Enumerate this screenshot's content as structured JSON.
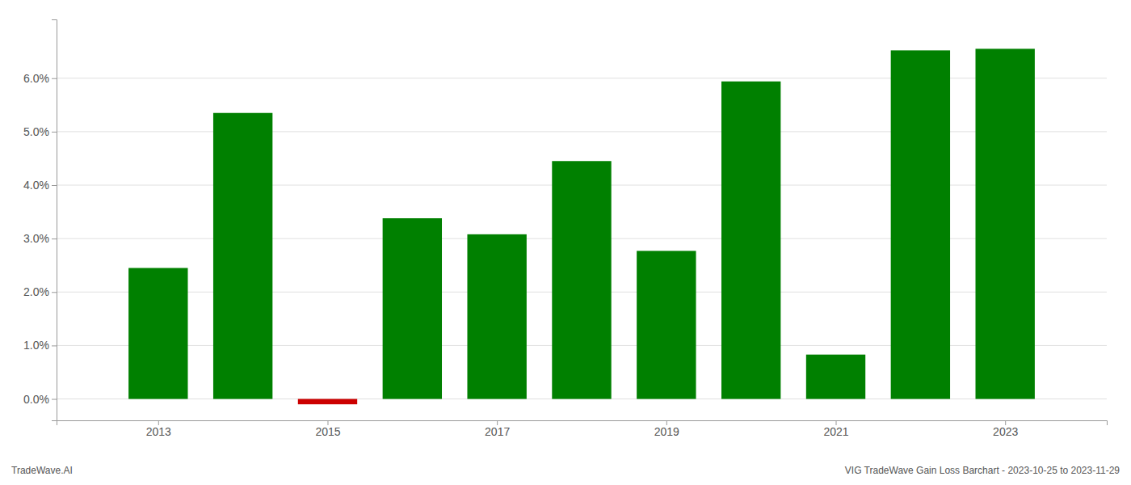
{
  "chart_data": {
    "type": "bar",
    "title": "VIG TradeWave Gain Loss Barchart - 2023-10-25 to 2023-11-29",
    "annotations": [
      "TradeWave.AI"
    ],
    "x": [
      2013,
      2014,
      2015,
      2016,
      2017,
      2018,
      2019,
      2020,
      2021,
      2022,
      2023
    ],
    "values": [
      0.0245,
      0.0535,
      -0.001,
      0.0338,
      0.0308,
      0.0445,
      0.0277,
      0.0594,
      0.0083,
      0.0652,
      0.0655
    ],
    "colors": [
      "#008000",
      "#008000",
      "#cc0000",
      "#008000",
      "#008000",
      "#008000",
      "#008000",
      "#008000",
      "#008000",
      "#008000",
      "#008000"
    ],
    "xlim": [
      2011.8,
      2024.2
    ],
    "xticks": [
      2013,
      2015,
      2017,
      2019,
      2021,
      2023
    ],
    "ylim": [
      -0.004,
      0.071
    ],
    "yticks": [
      {
        "value": 0.0,
        "label": "0.0%"
      },
      {
        "value": 0.01,
        "label": "1.0%"
      },
      {
        "value": 0.02,
        "label": "2.0%"
      },
      {
        "value": 0.03,
        "label": "3.0%"
      },
      {
        "value": 0.04,
        "label": "4.0%"
      },
      {
        "value": 0.05,
        "label": "5.0%"
      },
      {
        "value": 0.06,
        "label": "6.0%"
      }
    ],
    "grid": true
  }
}
